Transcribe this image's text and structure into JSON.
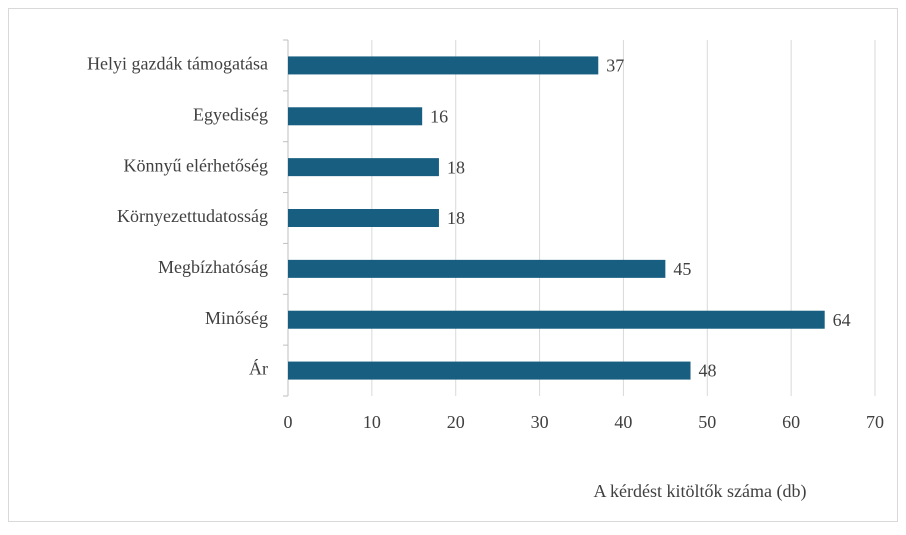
{
  "chart_data": {
    "type": "barh",
    "categories": [
      "Helyi gazdák támogatása",
      "Egyediség",
      "Könnyű elérhetőség",
      "Környezettudatosság",
      "Megbízhatóság",
      "Minőség",
      "Ár"
    ],
    "values": [
      37,
      16,
      18,
      18,
      45,
      64,
      48
    ],
    "color": "#175e80",
    "xlabel": "A kérdést kitöltők száma (db)",
    "xlim": [
      0,
      70
    ],
    "xticks": [
      0,
      10,
      20,
      30,
      40,
      50,
      60,
      70
    ],
    "grid": true
  }
}
